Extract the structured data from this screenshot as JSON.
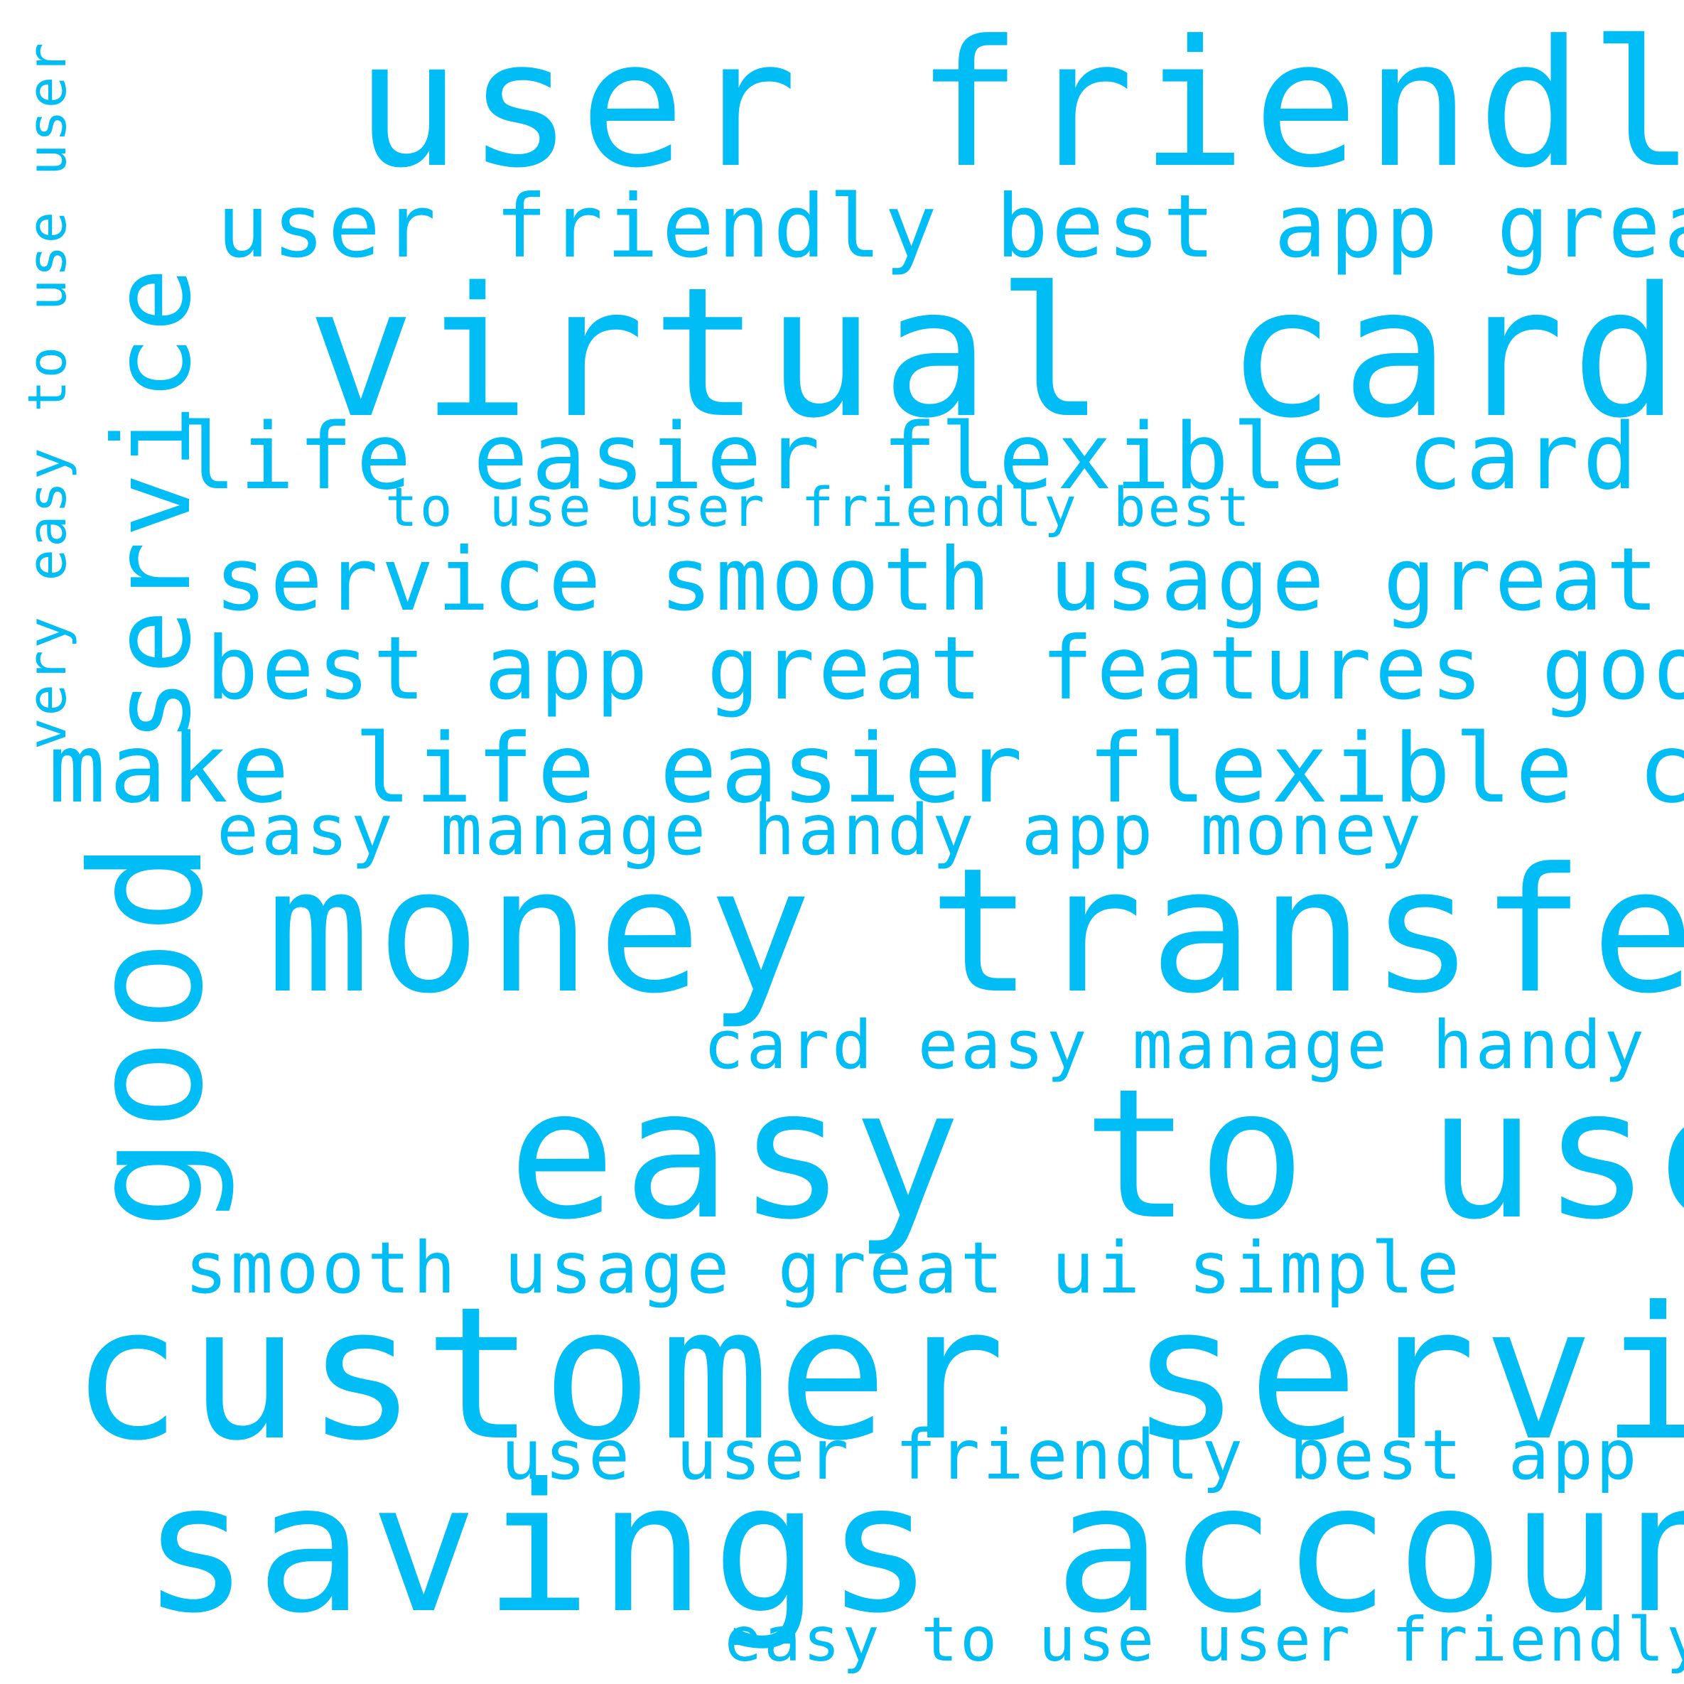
{
  "colors": {
    "text": "#00bdf6",
    "background": "#ffffff"
  },
  "phrases": [
    {
      "id": "user-friendly",
      "text": "user friendly"
    },
    {
      "id": "user-friendly-best-app-great",
      "text": "user friendly best app great"
    },
    {
      "id": "virtual-card",
      "text": "virtual card"
    },
    {
      "id": "life-easier-flexible-card-easy",
      "text": "life easier flexible card easy"
    },
    {
      "id": "to-use-user-friendly-best",
      "text": "to use user friendly best"
    },
    {
      "id": "service-smooth-usage-great-ui",
      "text": "service smooth usage great ui"
    },
    {
      "id": "best-app-great-features-good",
      "text": "best app great features good"
    },
    {
      "id": "make-life-easier-flexible-card",
      "text": "make life easier flexible card"
    },
    {
      "id": "easy-manage-handy-app-money",
      "text": "easy manage handy app money"
    },
    {
      "id": "money-transfer",
      "text": "money transfer"
    },
    {
      "id": "card-easy-manage-handy-app",
      "text": "card easy manage handy app"
    },
    {
      "id": "easy-to-use",
      "text": "easy to use"
    },
    {
      "id": "smooth-usage-great-ui-simple",
      "text": "smooth usage great ui simple"
    },
    {
      "id": "customer-service",
      "text": "customer service"
    },
    {
      "id": "use-user-friendly-best-app",
      "text": "use user friendly best app"
    },
    {
      "id": "savings-account",
      "text": "savings account"
    },
    {
      "id": "easy-to-use-user-friendly",
      "text": "easy to use user friendly"
    },
    {
      "id": "service",
      "text": "service"
    },
    {
      "id": "good",
      "text": "good"
    },
    {
      "id": "very-easy-to-use-user",
      "text": "very easy to use user"
    }
  ]
}
